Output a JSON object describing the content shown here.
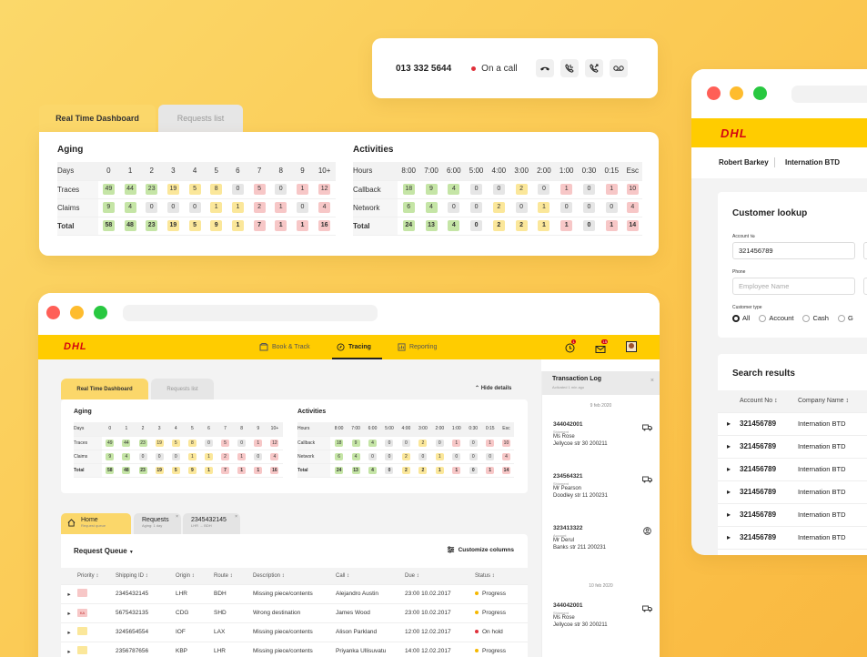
{
  "call": {
    "number": "013 332 5644",
    "status": "On a call",
    "icons": [
      "hangup-icon",
      "phone-in-icon",
      "phone-out-icon",
      "voicemail-icon"
    ]
  },
  "tabs": {
    "dashboard": "Real Time Dashboard",
    "requests": "Requests list"
  },
  "aging": {
    "title": "Aging",
    "head": [
      "Days",
      "0",
      "1",
      "2",
      "3",
      "4",
      "5",
      "6",
      "7",
      "8",
      "9",
      "10+"
    ],
    "rows": [
      {
        "label": "Traces",
        "cells": [
          [
            "49",
            "g"
          ],
          [
            "44",
            "g"
          ],
          [
            "23",
            "g"
          ],
          [
            "19",
            "y"
          ],
          [
            "5",
            "y"
          ],
          [
            "8",
            "y"
          ],
          [
            "0",
            "n"
          ],
          [
            "5",
            "r"
          ],
          [
            "0",
            "n"
          ],
          [
            "1",
            "r"
          ],
          [
            "12",
            "r"
          ]
        ]
      },
      {
        "label": "Claims",
        "cells": [
          [
            "9",
            "g"
          ],
          [
            "4",
            "g"
          ],
          [
            "0",
            "n"
          ],
          [
            "0",
            "n"
          ],
          [
            "0",
            "n"
          ],
          [
            "1",
            "y"
          ],
          [
            "1",
            "y"
          ],
          [
            "2",
            "r"
          ],
          [
            "1",
            "r"
          ],
          [
            "0",
            "n"
          ],
          [
            "4",
            "r"
          ]
        ]
      },
      {
        "label": "Total",
        "cells": [
          [
            "58",
            "g"
          ],
          [
            "48",
            "g"
          ],
          [
            "23",
            "g"
          ],
          [
            "19",
            "y"
          ],
          [
            "5",
            "y"
          ],
          [
            "9",
            "y"
          ],
          [
            "1",
            "y"
          ],
          [
            "7",
            "r"
          ],
          [
            "1",
            "r"
          ],
          [
            "1",
            "r"
          ],
          [
            "16",
            "r"
          ]
        ]
      }
    ]
  },
  "activities": {
    "title": "Activities",
    "head": [
      "Hours",
      "8:00",
      "7:00",
      "6:00",
      "5:00",
      "4:00",
      "3:00",
      "2:00",
      "1:00",
      "0:30",
      "0:15",
      "Esc"
    ],
    "rows": [
      {
        "label": "Callback",
        "cells": [
          [
            "18",
            "g"
          ],
          [
            "9",
            "g"
          ],
          [
            "4",
            "g"
          ],
          [
            "0",
            "n"
          ],
          [
            "0",
            "n"
          ],
          [
            "2",
            "y"
          ],
          [
            "0",
            "n"
          ],
          [
            "1",
            "r"
          ],
          [
            "0",
            "n"
          ],
          [
            "1",
            "r"
          ],
          [
            "10",
            "r"
          ]
        ]
      },
      {
        "label": "Network",
        "cells": [
          [
            "6",
            "g"
          ],
          [
            "4",
            "g"
          ],
          [
            "0",
            "n"
          ],
          [
            "0",
            "n"
          ],
          [
            "2",
            "y"
          ],
          [
            "0",
            "n"
          ],
          [
            "1",
            "y"
          ],
          [
            "0",
            "n"
          ],
          [
            "0",
            "n"
          ],
          [
            "0",
            "n"
          ],
          [
            "4",
            "r"
          ]
        ]
      },
      {
        "label": "Total",
        "cells": [
          [
            "24",
            "g"
          ],
          [
            "13",
            "g"
          ],
          [
            "4",
            "g"
          ],
          [
            "0",
            "n"
          ],
          [
            "2",
            "y"
          ],
          [
            "2",
            "y"
          ],
          [
            "1",
            "y"
          ],
          [
            "1",
            "r"
          ],
          [
            "0",
            "n"
          ],
          [
            "1",
            "r"
          ],
          [
            "14",
            "r"
          ]
        ]
      }
    ]
  },
  "nav": {
    "logo": "DHL",
    "book": "Book & Track",
    "tracing": "Tracing",
    "reporting": "Reporting",
    "notif_badge": "1",
    "mail_badge": "15"
  },
  "hide_details": "Hide details",
  "qtabs": [
    {
      "title": "Home",
      "sub": "Request queue"
    },
    {
      "title": "Requests",
      "sub": "Aging: 1 day"
    },
    {
      "title": "2345432145",
      "sub": "LHR → BDH"
    }
  ],
  "queue": {
    "title": "Request Queue",
    "customize": "Customize columns",
    "columns": [
      "Priority",
      "Shipping ID",
      "Origin",
      "Route",
      "Description",
      "Call",
      "Due",
      "Status"
    ],
    "rows": [
      {
        "pri": "",
        "pc": "r",
        "id": "2345432145",
        "origin": "LHR",
        "route": "BDH",
        "desc": "Missing piece/contents",
        "call": "Alejandro Austin",
        "due": "23:00  10.02.2017",
        "status": "Progress",
        "sc": "#f5b800"
      },
      {
        "pri": "KA",
        "pc": "r",
        "id": "5675432135",
        "origin": "CDG",
        "route": "SHD",
        "desc": "Wrong destination",
        "call": "James Wood",
        "due": "23:00  10.02.2017",
        "status": "Progress",
        "sc": "#f5b800"
      },
      {
        "pri": "",
        "pc": "y",
        "id": "3245654554",
        "origin": "IOF",
        "route": "LAX",
        "desc": "Missing piece/contents",
        "call": "Alison Parkland",
        "due": "12:00  12.02.2017",
        "status": "On hold",
        "sc": "#e0303a"
      },
      {
        "pri": "",
        "pc": "y",
        "id": "2356787656",
        "origin": "KBP",
        "route": "LHR",
        "desc": "Missing piece/contents",
        "call": "Priyanka Ullisuvatu",
        "due": "14:00  12.02.2017",
        "status": "Progress",
        "sc": "#f5b800"
      }
    ]
  },
  "log": {
    "title": "Transaction Log",
    "sub": "Activated 1 min ago",
    "dates": [
      "9 feb 2020",
      "10 feb 2020"
    ],
    "items": [
      {
        "id": "344042001",
        "type": "Shipment",
        "name": "Ms Rose",
        "addr": "Jellycoe str 30 200211"
      },
      {
        "id": "234564321",
        "type": "Shipment",
        "name": "Mr Pearson",
        "addr": "Doodley str 11 200231"
      },
      {
        "id": "323413322",
        "type": "Account",
        "name": "Mr Derul",
        "addr": "Banks str 211 200231"
      },
      {
        "id": "344042001",
        "type": "Shipment",
        "name": "Ms Rose",
        "addr": "Jellycoe str 30 200211"
      }
    ]
  },
  "right": {
    "agent": "Robert Barkey",
    "company": "Internation BTD",
    "lookup": {
      "title": "Customer lookup",
      "account_label": "Account №",
      "account_value": "321456789",
      "phone_label": "Phone",
      "phone_placeholder": "Employee Name",
      "type_label": "Customer type",
      "options": [
        "All",
        "Account",
        "Cash",
        "G"
      ]
    },
    "results": {
      "title": "Search results",
      "columns": [
        "Account No",
        "Company Name"
      ],
      "rows": [
        [
          "321456789",
          "Internation BTD"
        ],
        [
          "321456789",
          "Internation BTD"
        ],
        [
          "321456789",
          "Internation BTD"
        ],
        [
          "321456789",
          "Internation BTD"
        ],
        [
          "321456789",
          "Internation BTD"
        ],
        [
          "321456789",
          "Internation BTD"
        ]
      ]
    }
  },
  "colors": {
    "dhl_yellow": "#ffcc00",
    "dhl_red": "#d40511",
    "tab_yellow": "#fbd76a"
  }
}
